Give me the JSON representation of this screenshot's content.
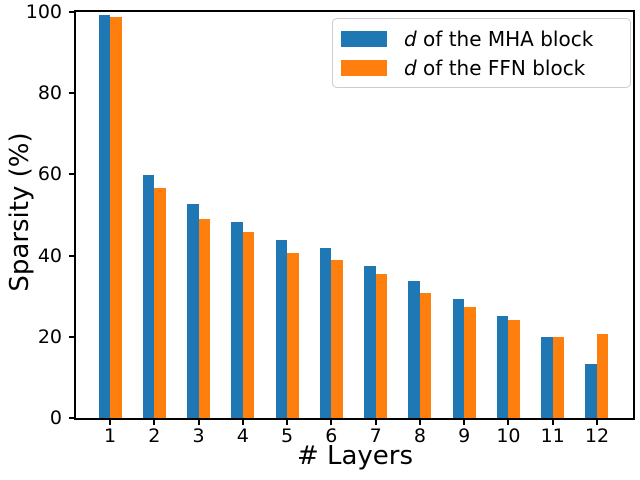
{
  "chart_data": {
    "type": "bar",
    "title": "",
    "xlabel": "# Layers",
    "ylabel": "Sparsity (%)",
    "categories": [
      "1",
      "2",
      "3",
      "4",
      "5",
      "6",
      "7",
      "8",
      "9",
      "10",
      "11",
      "12"
    ],
    "series": [
      {
        "name": "d of the MHA block",
        "label_italic": "d",
        "label_rest": " of the MHA block",
        "color": "#1f77b4",
        "values": [
          99.3,
          59.9,
          52.6,
          48.4,
          43.9,
          41.8,
          37.4,
          33.8,
          29.2,
          25.1,
          19.9,
          13.2
        ]
      },
      {
        "name": "d of the FFN block",
        "label_italic": "d",
        "label_rest": " of the FFN block",
        "color": "#ff7f0e",
        "values": [
          98.7,
          56.7,
          49.0,
          45.9,
          40.6,
          39.0,
          35.5,
          30.7,
          27.4,
          24.1,
          20.0,
          20.7
        ]
      }
    ],
    "ylim": [
      0,
      100
    ],
    "yticks": [
      0,
      20,
      40,
      60,
      80,
      100
    ],
    "grid": false,
    "legend_position": "upper right",
    "axis_color": "#000000",
    "background_color": "#ffffff"
  }
}
